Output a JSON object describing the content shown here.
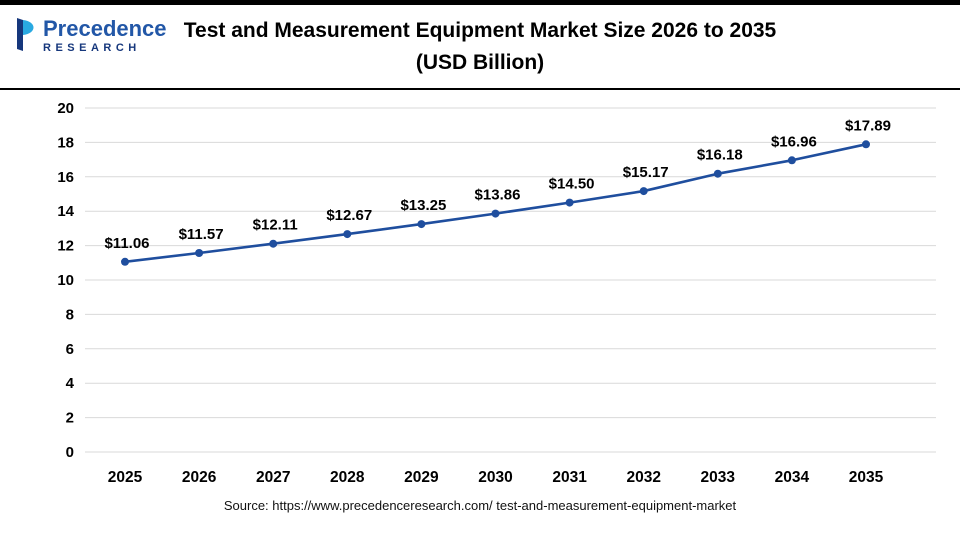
{
  "logo": {
    "line1": "Precedence",
    "line2": "RESEARCH",
    "colors": {
      "light_blue": "#29a9e1",
      "dark_blue": "#16377c",
      "text_blue": "#2257a7"
    }
  },
  "header": {
    "title_line1": "Test and Measurement Equipment Market Size 2026 to 2035",
    "title_line2": "(USD Billion)"
  },
  "chart_data": {
    "type": "line",
    "title": "Test and Measurement Equipment Market Size 2026 to 2035 (USD Billion)",
    "categories": [
      "2025",
      "2026",
      "2027",
      "2028",
      "2029",
      "2030",
      "2031",
      "2032",
      "2033",
      "2034",
      "2035"
    ],
    "values": [
      11.06,
      11.57,
      12.11,
      12.67,
      13.25,
      13.86,
      14.5,
      15.17,
      16.18,
      16.96,
      17.89
    ],
    "data_labels": [
      "$11.06",
      "$11.57",
      "$12.11",
      "$12.67",
      "$13.25",
      "$13.86",
      "$14.50",
      "$15.17",
      "$16.18",
      "$16.96",
      "$17.89"
    ],
    "xlabel": "",
    "ylabel": "",
    "ylim": [
      0,
      20
    ],
    "yticks": [
      0,
      2,
      4,
      6,
      8,
      10,
      12,
      14,
      16,
      18,
      20
    ],
    "grid": true,
    "legend": false,
    "line_color": "#1f4e9e",
    "grid_color": "#d9d9d9"
  },
  "source": "Source: https://www.precedenceresearch.com/ test-and-measurement-equipment-market"
}
